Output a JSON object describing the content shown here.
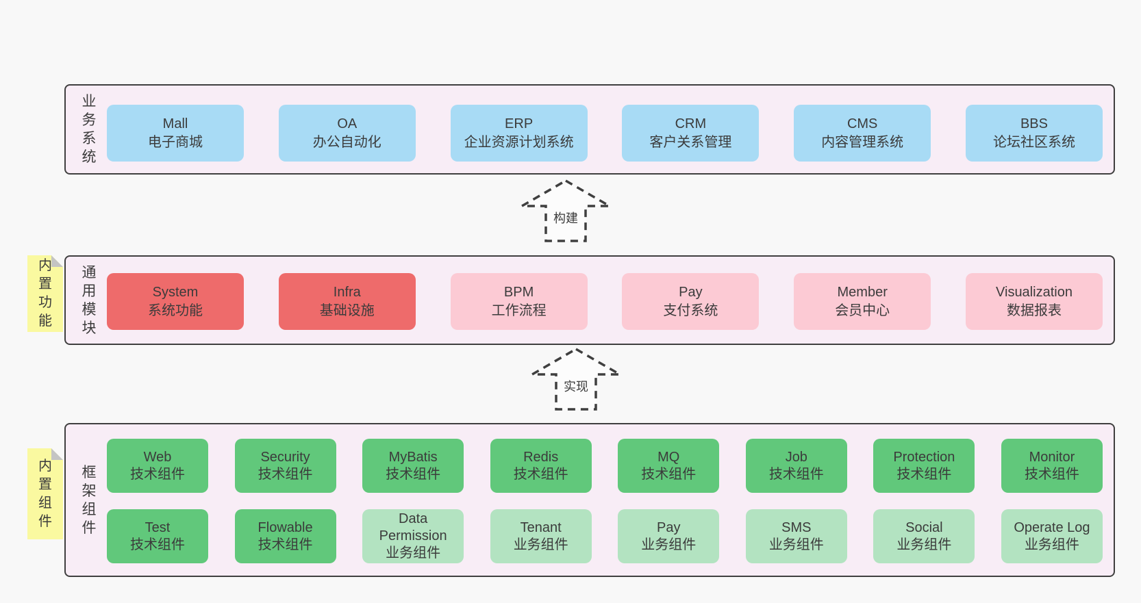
{
  "colors": {
    "bg": "#f8f8f8",
    "panel_bg": "#f8edf6",
    "panel_border": "#3f3f3f",
    "blue": "#a8dbf5",
    "red": "#ee6b6b",
    "pink": "#fccad4",
    "green": "#61c87b",
    "green_light": "#b3e3c1",
    "yellow": "#faf9a0",
    "fold": "#c4c4c4",
    "text": "#3b3b3b",
    "arrow_fill": "#fcfcfc"
  },
  "sections": [
    {
      "id": "business-systems",
      "label": "业务系统",
      "sticky": null,
      "rows": [
        [
          {
            "title": "Mall",
            "subtitle": "电子商城",
            "variant": "blue"
          },
          {
            "title": "OA",
            "subtitle": "办公自动化",
            "variant": "blue"
          },
          {
            "title": "ERP",
            "subtitle": "企业资源计划系统",
            "variant": "blue"
          },
          {
            "title": "CRM",
            "subtitle": "客户关系管理",
            "variant": "blue"
          },
          {
            "title": "CMS",
            "subtitle": "内容管理系统",
            "variant": "blue"
          },
          {
            "title": "BBS",
            "subtitle": "论坛社区系统",
            "variant": "blue"
          }
        ]
      ]
    },
    {
      "id": "common-modules",
      "label": "通用模块",
      "sticky": "内置功能",
      "rows": [
        [
          {
            "title": "System",
            "subtitle": "系统功能",
            "variant": "red"
          },
          {
            "title": "Infra",
            "subtitle": "基础设施",
            "variant": "red"
          },
          {
            "title": "BPM",
            "subtitle": "工作流程",
            "variant": "pink"
          },
          {
            "title": "Pay",
            "subtitle": "支付系统",
            "variant": "pink"
          },
          {
            "title": "Member",
            "subtitle": "会员中心",
            "variant": "pink"
          },
          {
            "title": "Visualization",
            "subtitle": "数据报表",
            "variant": "pink"
          }
        ]
      ]
    },
    {
      "id": "framework-components",
      "label": "框架组件",
      "sticky": "内置组件",
      "rows": [
        [
          {
            "title": "Web",
            "subtitle": "技术组件",
            "variant": "green"
          },
          {
            "title": "Security",
            "subtitle": "技术组件",
            "variant": "green"
          },
          {
            "title": "MyBatis",
            "subtitle": "技术组件",
            "variant": "green"
          },
          {
            "title": "Redis",
            "subtitle": "技术组件",
            "variant": "green"
          },
          {
            "title": "MQ",
            "subtitle": "技术组件",
            "variant": "green"
          },
          {
            "title": "Job",
            "subtitle": "技术组件",
            "variant": "green"
          },
          {
            "title": "Protection",
            "subtitle": "技术组件",
            "variant": "green"
          },
          {
            "title": "Monitor",
            "subtitle": "技术组件",
            "variant": "green"
          }
        ],
        [
          {
            "title": "Test",
            "subtitle": "技术组件",
            "variant": "green"
          },
          {
            "title": "Flowable",
            "subtitle": "技术组件",
            "variant": "green"
          },
          {
            "title": "Data Permission",
            "subtitle": "业务组件",
            "variant": "green_light"
          },
          {
            "title": "Tenant",
            "subtitle": "业务组件",
            "variant": "green_light"
          },
          {
            "title": "Pay",
            "subtitle": "业务组件",
            "variant": "green_light"
          },
          {
            "title": "SMS",
            "subtitle": "业务组件",
            "variant": "green_light"
          },
          {
            "title": "Social",
            "subtitle": "业务组件",
            "variant": "green_light"
          },
          {
            "title": "Operate Log",
            "subtitle": "业务组件",
            "variant": "green_light"
          }
        ]
      ]
    }
  ],
  "arrows": [
    {
      "label": "构建"
    },
    {
      "label": "实现"
    }
  ]
}
